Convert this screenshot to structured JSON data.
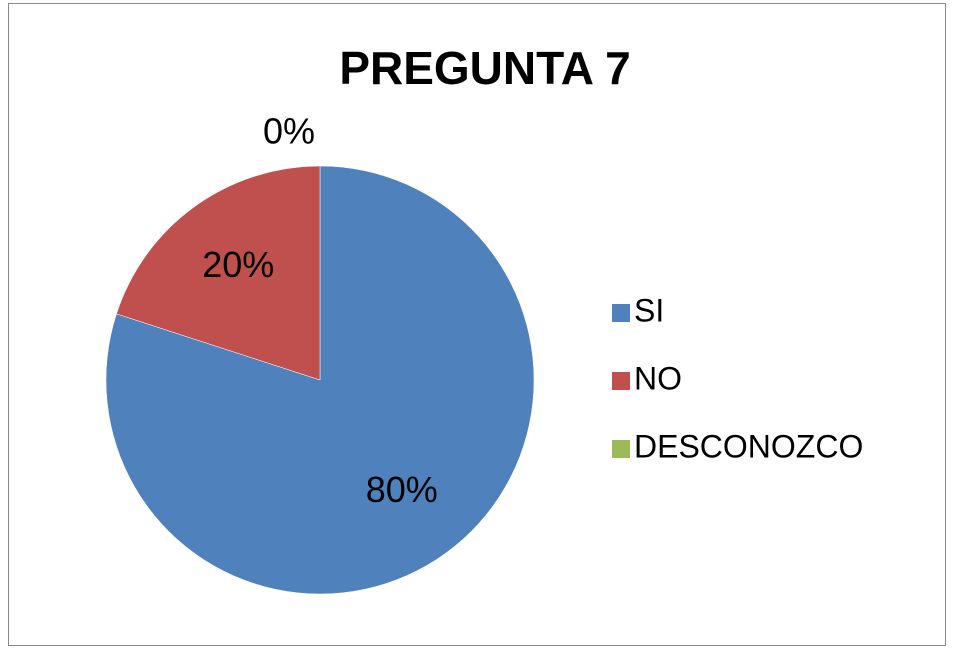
{
  "chart_data": {
    "type": "pie",
    "title": "PREGUNTA 7",
    "categories": [
      "SI",
      "NO",
      "DESCONOZCO"
    ],
    "values": [
      80,
      20,
      0
    ],
    "value_labels": [
      "80%",
      "20%",
      "0%"
    ],
    "colors": [
      "#4f81bd",
      "#c0504d",
      "#9bbb59"
    ],
    "legend": "right"
  }
}
